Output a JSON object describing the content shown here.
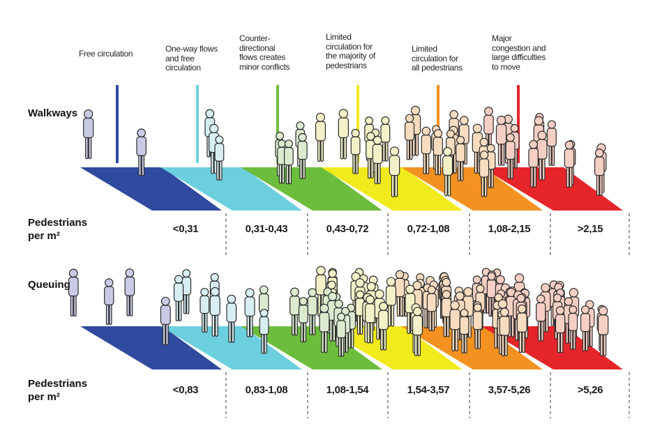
{
  "levels": [
    {
      "label": "Free circulation",
      "color": "#2f4a9e"
    },
    {
      "label": "One-way flows\nand free\ncirculation",
      "color": "#6ccfde"
    },
    {
      "label": "Counter-\ndirectional\nflows creates\nminor conflicts",
      "color": "#6dbd3c"
    },
    {
      "label": "Limited\ncirculation for\nthe majority of\npedestrians",
      "color": "#f1ea1c"
    },
    {
      "label": "Limited\ncirculation for\nall pedestrians",
      "color": "#f39221"
    },
    {
      "label": "Major\ncongestion and\nlarge difficulties\nto move",
      "color": "#e6252a"
    }
  ],
  "walkways": {
    "title": "Walkways",
    "unit_label": "Pedestrians\nper m²",
    "ranges": [
      "<0,31",
      "0,31-0,43",
      "0,43-0,72",
      "0,72-1,08",
      "1,08-2,15",
      ">2,15"
    ]
  },
  "queuing": {
    "title": "Queuing",
    "unit_label": "Pedestrians\nper m²",
    "ranges": [
      "<0,83",
      "0,83-1,08",
      "1,08-1,54",
      "1,54-3,57",
      "3,57-5,26",
      ">5,26"
    ]
  },
  "figure_tints": [
    "#c9cbe6",
    "#d7eef2",
    "#dcebd0",
    "#f3f1c8",
    "#f8dcc0",
    "#f6cfc4"
  ]
}
